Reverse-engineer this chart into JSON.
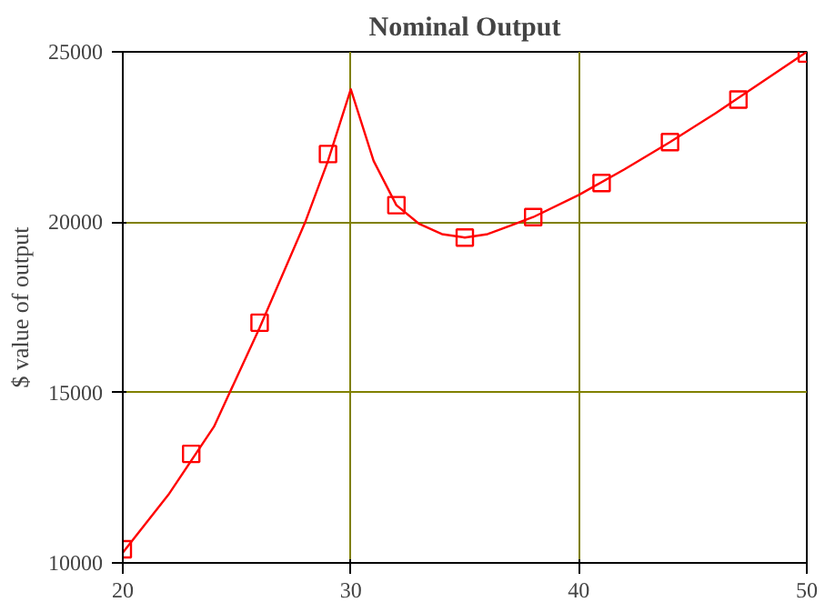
{
  "chart_data": {
    "type": "line",
    "title": "Nominal Output",
    "ylabel": "$ value of output",
    "xlim": [
      20,
      50
    ],
    "ylim": [
      10000,
      25000
    ],
    "xticks": [
      20,
      30,
      40,
      50
    ],
    "yticks": [
      10000,
      15000,
      20000,
      25000
    ],
    "grid": true,
    "series": [
      {
        "color": "#ff0000",
        "marker": "none",
        "x": [
          20,
          22,
          24,
          26,
          28,
          29,
          30,
          31,
          32,
          33,
          34,
          35,
          36,
          37,
          38,
          40,
          42,
          44,
          46,
          48,
          50
        ],
        "values": [
          10300,
          12000,
          14000,
          16900,
          20000,
          21800,
          23900,
          21800,
          20500,
          19950,
          19650,
          19550,
          19650,
          19900,
          20150,
          20800,
          21550,
          22350,
          23200,
          24100,
          25000
        ]
      },
      {
        "type": "scatter",
        "color": "#ff0000",
        "marker": "square",
        "x": [
          20,
          23,
          26,
          29,
          32,
          35,
          38,
          41,
          44,
          47,
          50
        ],
        "values": [
          10400,
          13200,
          17050,
          22000,
          20500,
          19550,
          20150,
          21150,
          22350,
          23600,
          24950
        ]
      }
    ]
  }
}
